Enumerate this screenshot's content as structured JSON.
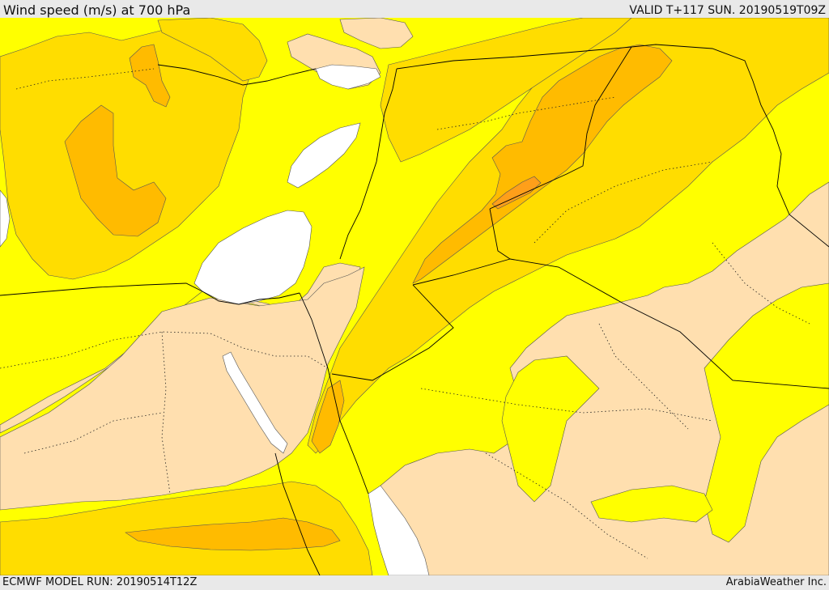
{
  "header": {
    "title": "Wind speed (m/s) at 700 hPa",
    "valid": "VALID T+117 SUN. 20190519T09Z"
  },
  "footer": {
    "model_run": "ECMWF MODEL RUN: 20190514T12Z",
    "credit": "ArabiaWeather Inc."
  },
  "palette": {
    "calm": "#ffffff",
    "light": "#ffdfaf",
    "moderate": "#ffff00",
    "fresh": "#ffdd00",
    "strong": "#ffbb00",
    "very_strong": "#ff9f1a",
    "land_border": "#000000"
  }
}
